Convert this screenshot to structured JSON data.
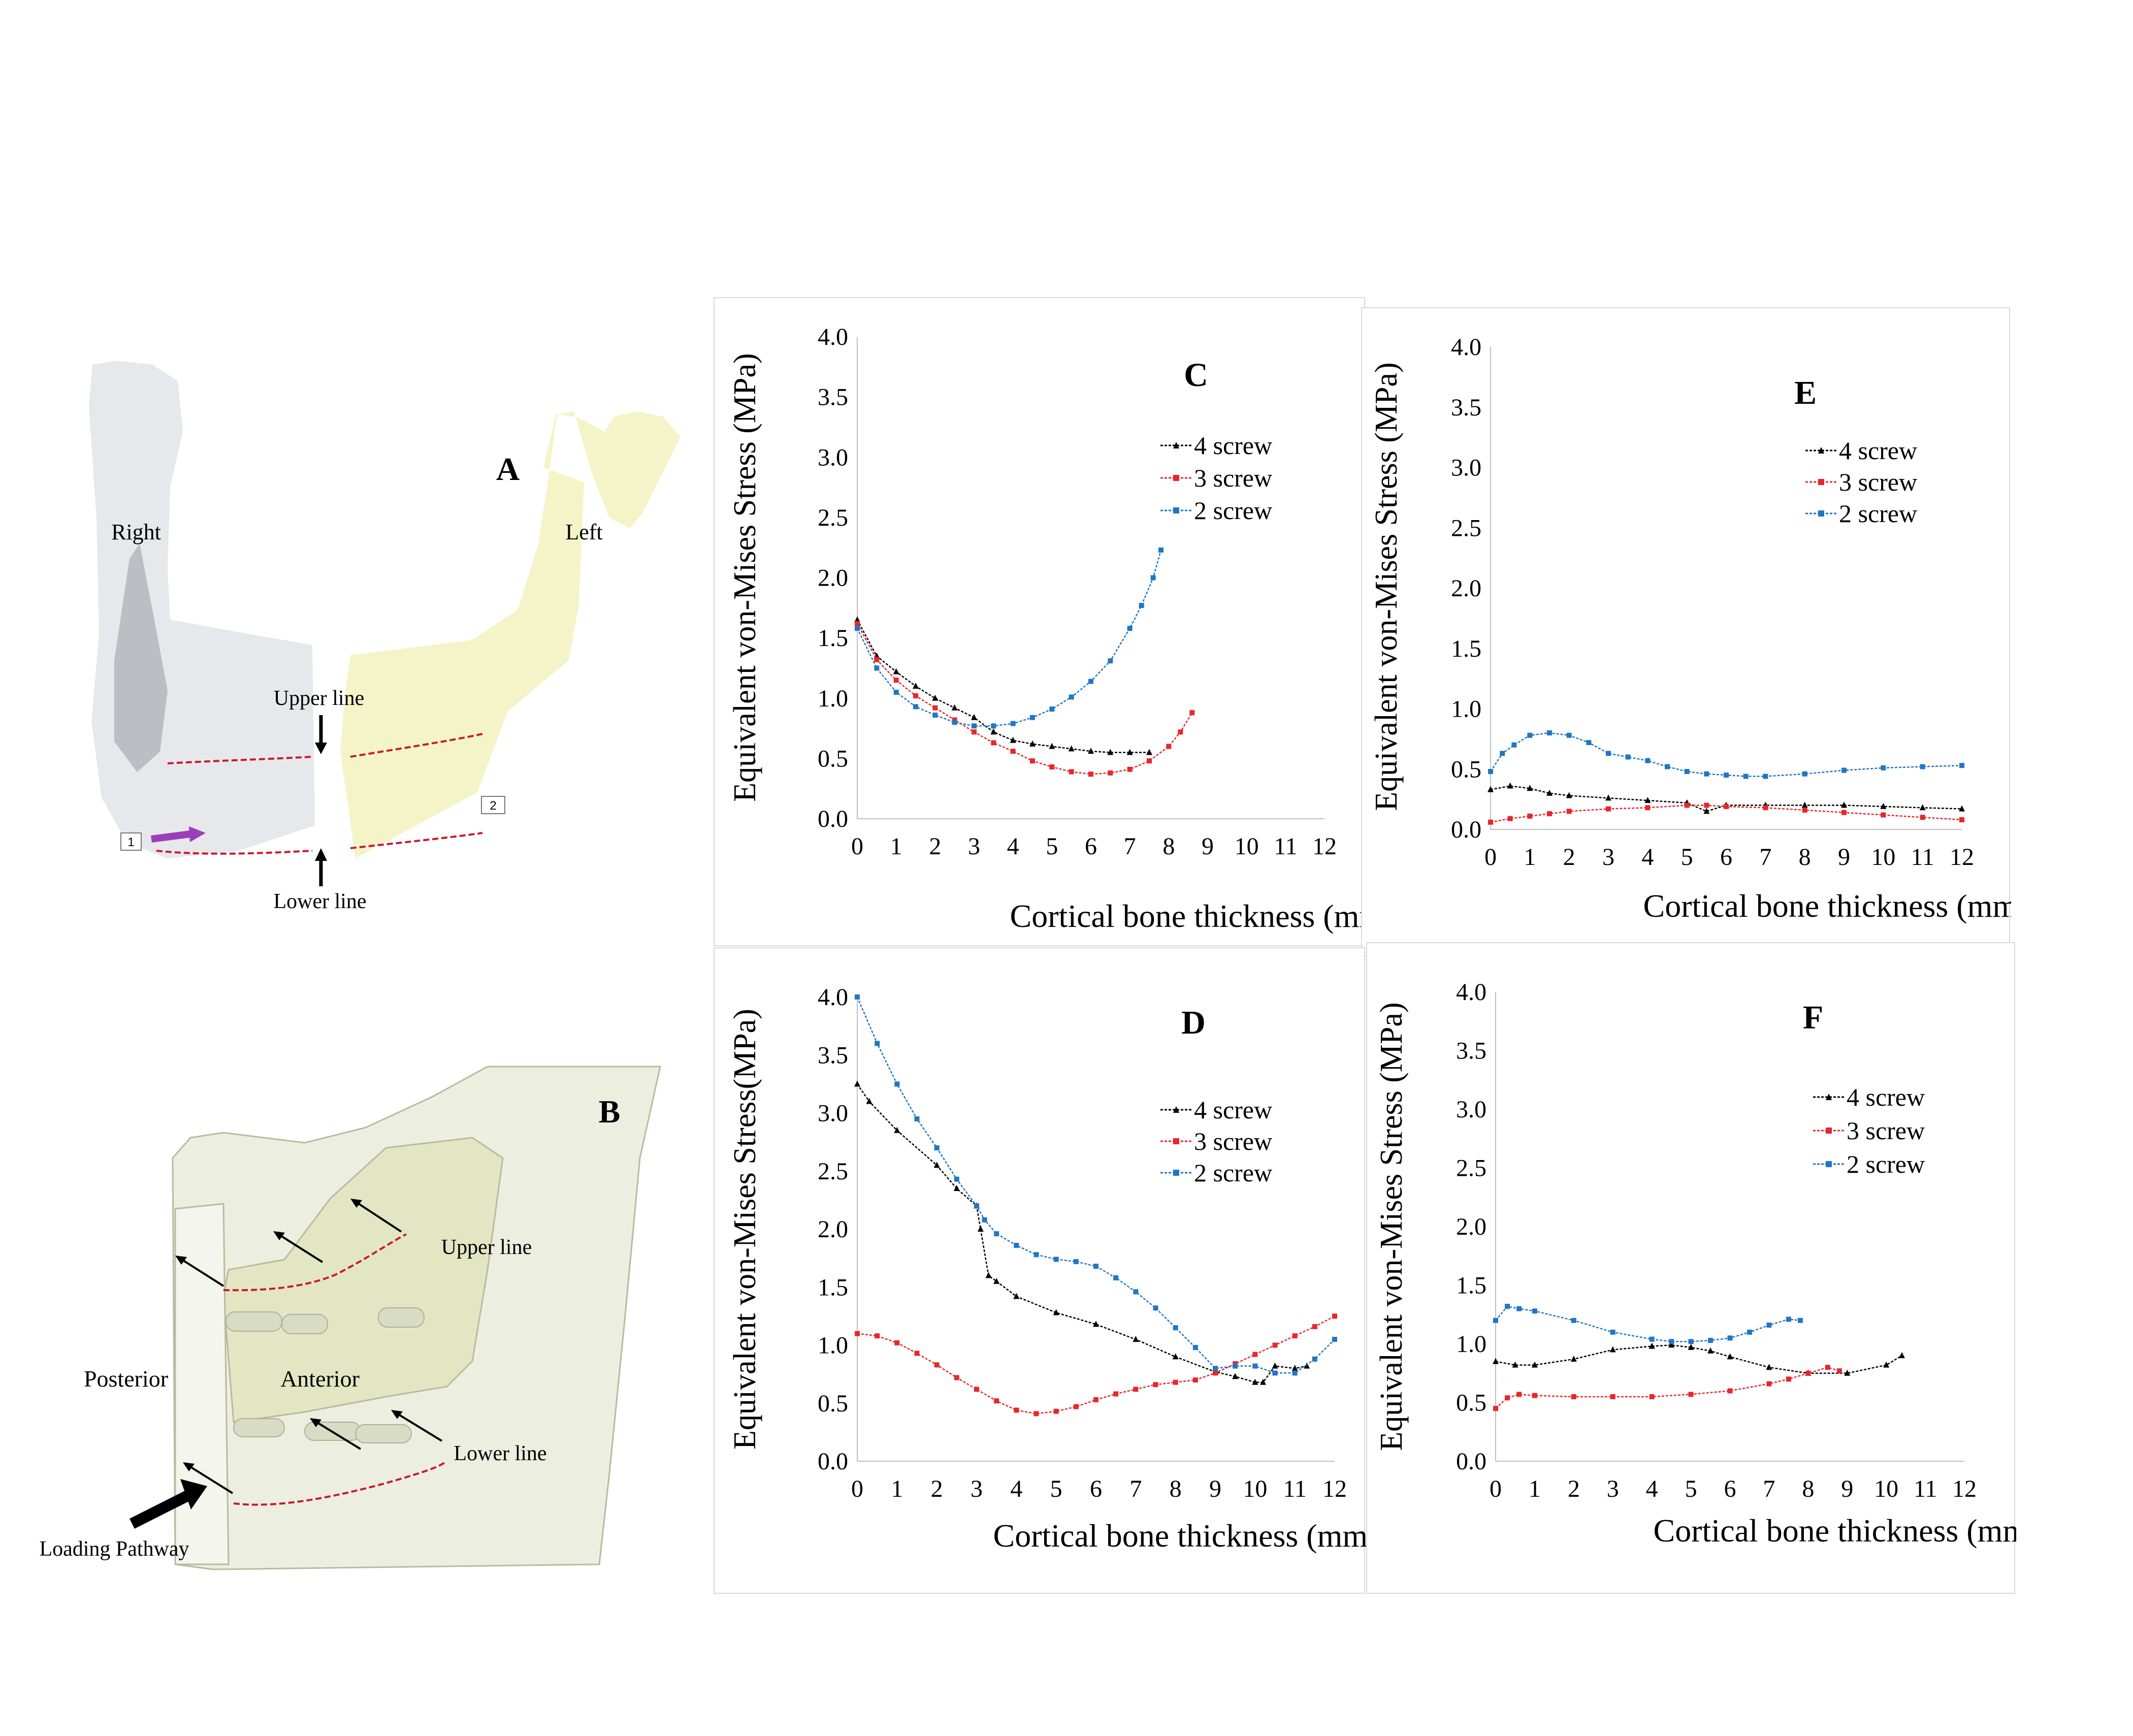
{
  "figure": {
    "panel_A": {
      "label": "A",
      "right_label": "Right",
      "left_label": "Left",
      "upper_line_label": "Upper line",
      "lower_line_label": "Lower line",
      "marker_1": "1",
      "marker_2": "2"
    },
    "panel_B": {
      "label": "B",
      "upper_line_label": "Upper line",
      "lower_line_label": "Lower line",
      "posterior_label": "Posterior",
      "anterior_label": "Anterior",
      "loading_label": "Loading Pathway"
    }
  },
  "colors": {
    "four_screw": "#000000",
    "three_screw": "#e8262b",
    "two_screw": "#1f77c4",
    "cut_line": "#c8192d",
    "bone_right": "#d4d6dc",
    "bone_left": "#f0f0b6",
    "bone_b": "#eceee0"
  },
  "chart_data": [
    {
      "panel": "C",
      "type": "line",
      "title": "C",
      "xlabel": "Cortical bone thickness (mm)",
      "ylabel": "Equivalent von-Mises Stress (MPa)",
      "xlim": [
        0,
        12
      ],
      "ylim": [
        0,
        4
      ],
      "x_ticks": [
        "0",
        "1",
        "2",
        "3",
        "4",
        "5",
        "6",
        "7",
        "8",
        "9",
        "10",
        "11",
        "12"
      ],
      "y_ticks": [
        "0.0",
        "0.5",
        "1.0",
        "1.5",
        "2.0",
        "2.5",
        "3.0",
        "3.5",
        "4.0"
      ],
      "series": [
        {
          "name": "4 screw",
          "x": [
            0,
            0.5,
            1,
            1.5,
            2,
            2.5,
            3,
            3.5,
            4,
            4.5,
            5,
            5.5,
            6,
            6.5,
            7,
            7.5
          ],
          "y": [
            1.65,
            1.35,
            1.22,
            1.1,
            1.0,
            0.92,
            0.84,
            0.72,
            0.65,
            0.62,
            0.6,
            0.58,
            0.56,
            0.55,
            0.55,
            0.55
          ]
        },
        {
          "name": "3 screw",
          "x": [
            0,
            0.5,
            1,
            1.5,
            2,
            2.5,
            3,
            3.5,
            4,
            4.5,
            5,
            5.5,
            6,
            6.5,
            7,
            7.5,
            8,
            8.3,
            8.6
          ],
          "y": [
            1.62,
            1.32,
            1.15,
            1.02,
            0.92,
            0.82,
            0.72,
            0.63,
            0.56,
            0.48,
            0.43,
            0.39,
            0.37,
            0.38,
            0.41,
            0.48,
            0.6,
            0.72,
            0.88
          ]
        },
        {
          "name": "2 screw",
          "x": [
            0,
            0.5,
            1,
            1.5,
            2,
            2.5,
            3,
            3.5,
            4,
            4.5,
            5,
            5.5,
            6,
            6.5,
            7,
            7.3,
            7.6,
            7.8
          ],
          "y": [
            1.58,
            1.25,
            1.05,
            0.93,
            0.86,
            0.8,
            0.77,
            0.77,
            0.79,
            0.84,
            0.91,
            1.01,
            1.14,
            1.31,
            1.58,
            1.77,
            2.0,
            2.23
          ]
        }
      ]
    },
    {
      "panel": "D",
      "type": "line",
      "title": "D",
      "xlabel": "Cortical bone thickness (mm)",
      "ylabel": "Equivalent von-Mises Stress(MPa)",
      "xlim": [
        0,
        12
      ],
      "ylim": [
        0,
        4
      ],
      "x_ticks": [
        "0",
        "1",
        "2",
        "3",
        "4",
        "5",
        "6",
        "7",
        "8",
        "9",
        "10",
        "11",
        "12"
      ],
      "y_ticks": [
        "0.0",
        "0.5",
        "1.0",
        "1.5",
        "2.0",
        "2.5",
        "3.0",
        "3.5",
        "4.0"
      ],
      "series": [
        {
          "name": "4 screw",
          "x": [
            0,
            0.3,
            1,
            2,
            2.5,
            3,
            3.1,
            3.3,
            3.5,
            4,
            5,
            6,
            7,
            8,
            9,
            9.5,
            10,
            10.2,
            10.5,
            11,
            11.3
          ],
          "y": [
            3.25,
            3.1,
            2.85,
            2.55,
            2.35,
            2.2,
            2.0,
            1.6,
            1.55,
            1.42,
            1.28,
            1.18,
            1.05,
            0.9,
            0.77,
            0.73,
            0.68,
            0.68,
            0.82,
            0.8,
            0.82
          ]
        },
        {
          "name": "3 screw",
          "x": [
            0,
            0.5,
            1,
            1.5,
            2,
            2.5,
            3,
            3.5,
            4,
            4.5,
            5,
            5.5,
            6,
            6.5,
            7,
            7.5,
            8,
            8.5,
            9,
            9.5,
            10,
            10.5,
            11,
            11.5,
            12
          ],
          "y": [
            1.1,
            1.08,
            1.02,
            0.93,
            0.83,
            0.72,
            0.62,
            0.52,
            0.44,
            0.41,
            0.43,
            0.47,
            0.53,
            0.58,
            0.62,
            0.66,
            0.68,
            0.7,
            0.76,
            0.84,
            0.92,
            1.0,
            1.08,
            1.16,
            1.25
          ]
        },
        {
          "name": "2 screw",
          "x": [
            0,
            0.5,
            1,
            1.5,
            2,
            2.5,
            3,
            3.2,
            3.5,
            4,
            4.5,
            5,
            5.5,
            6,
            6.5,
            7,
            7.5,
            8,
            8.5,
            9,
            9.5,
            10,
            10.5,
            11,
            11.5,
            12
          ],
          "y": [
            4.0,
            3.6,
            3.25,
            2.95,
            2.7,
            2.43,
            2.2,
            2.08,
            1.96,
            1.86,
            1.78,
            1.74,
            1.72,
            1.68,
            1.58,
            1.46,
            1.32,
            1.15,
            0.98,
            0.8,
            0.82,
            0.82,
            0.76,
            0.76,
            0.88,
            1.05
          ]
        }
      ]
    },
    {
      "panel": "E",
      "type": "line",
      "title": "E",
      "xlabel": "Cortical bone thickness (mm)",
      "ylabel": "Equivalent von-Mises Stress (MPa)",
      "xlim": [
        0,
        12
      ],
      "ylim": [
        0,
        4
      ],
      "x_ticks": [
        "0",
        "1",
        "2",
        "3",
        "4",
        "5",
        "6",
        "7",
        "8",
        "9",
        "10",
        "11",
        "12"
      ],
      "y_ticks": [
        "0.0",
        "0.5",
        "1.0",
        "1.5",
        "2.0",
        "2.5",
        "3.0",
        "3.5",
        "4.0"
      ],
      "series": [
        {
          "name": "4 screw",
          "x": [
            0,
            0.5,
            1,
            1.5,
            2,
            3,
            4,
            5,
            5.5,
            6,
            7,
            8,
            9,
            10,
            11,
            12
          ],
          "y": [
            0.33,
            0.36,
            0.34,
            0.3,
            0.28,
            0.26,
            0.24,
            0.22,
            0.15,
            0.2,
            0.2,
            0.2,
            0.2,
            0.19,
            0.18,
            0.17
          ]
        },
        {
          "name": "3 screw",
          "x": [
            0,
            0.5,
            1,
            1.5,
            2,
            3,
            4,
            5,
            5.5,
            6,
            7,
            8,
            9,
            10,
            11,
            12
          ],
          "y": [
            0.06,
            0.09,
            0.11,
            0.13,
            0.15,
            0.17,
            0.18,
            0.2,
            0.2,
            0.19,
            0.18,
            0.16,
            0.14,
            0.12,
            0.1,
            0.08
          ]
        },
        {
          "name": "2 screw",
          "x": [
            0,
            0.3,
            0.6,
            1,
            1.5,
            2,
            2.5,
            3,
            3.5,
            4,
            4.5,
            5,
            5.5,
            6,
            6.5,
            7,
            8,
            9,
            10,
            11,
            12
          ],
          "y": [
            0.48,
            0.63,
            0.7,
            0.78,
            0.8,
            0.78,
            0.72,
            0.63,
            0.6,
            0.57,
            0.52,
            0.48,
            0.46,
            0.45,
            0.44,
            0.44,
            0.46,
            0.49,
            0.51,
            0.52,
            0.53
          ]
        }
      ]
    },
    {
      "panel": "F",
      "type": "line",
      "title": "F",
      "xlabel": "Cortical bone thickness (mm)",
      "ylabel": "Equivalent von-Mises Stress (MPa)",
      "xlim": [
        0,
        12
      ],
      "ylim": [
        0,
        4
      ],
      "x_ticks": [
        "0",
        "1",
        "2",
        "3",
        "4",
        "5",
        "6",
        "7",
        "8",
        "9",
        "10",
        "11",
        "12"
      ],
      "y_ticks": [
        "0.0",
        "0.5",
        "1.0",
        "1.5",
        "2.0",
        "2.5",
        "3.0",
        "3.5",
        "4.0"
      ],
      "series": [
        {
          "name": "4 screw",
          "x": [
            0,
            0.5,
            1,
            2,
            3,
            4,
            4.5,
            5,
            5.5,
            6,
            7,
            8,
            9,
            10,
            10.4
          ],
          "y": [
            0.85,
            0.82,
            0.82,
            0.87,
            0.95,
            0.98,
            0.99,
            0.97,
            0.94,
            0.89,
            0.8,
            0.75,
            0.75,
            0.82,
            0.9
          ]
        },
        {
          "name": "3 screw",
          "x": [
            0,
            0.3,
            0.6,
            1,
            2,
            3,
            4,
            5,
            6,
            7,
            7.5,
            8,
            8.5,
            8.8
          ],
          "y": [
            0.45,
            0.54,
            0.57,
            0.56,
            0.55,
            0.55,
            0.55,
            0.57,
            0.6,
            0.66,
            0.7,
            0.75,
            0.8,
            0.77
          ]
        },
        {
          "name": "2 screw",
          "x": [
            0,
            0.3,
            0.6,
            1,
            2,
            3,
            4,
            4.5,
            5,
            5.5,
            6,
            6.5,
            7,
            7.5,
            7.8
          ],
          "y": [
            1.2,
            1.32,
            1.3,
            1.28,
            1.2,
            1.1,
            1.04,
            1.02,
            1.02,
            1.03,
            1.05,
            1.1,
            1.16,
            1.21,
            1.2
          ]
        }
      ]
    }
  ]
}
